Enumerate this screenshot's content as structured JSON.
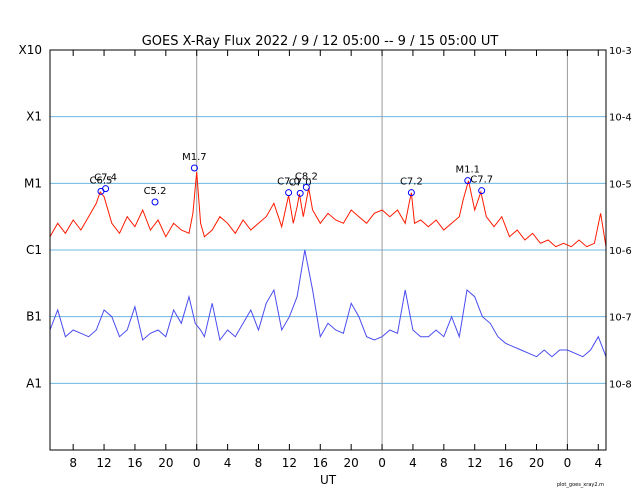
{
  "chart_data": {
    "type": "line",
    "title": "GOES X-Ray Flux   2022 /  9 / 12   05:00 --  9 / 15   05:00   UT",
    "xlabel": "UT",
    "footnote": "plot_goes_xray2.m",
    "x_range_hours": [
      0,
      72
    ],
    "x_ticks": [
      {
        "h": 3,
        "label": "8"
      },
      {
        "h": 7,
        "label": "12"
      },
      {
        "h": 11,
        "label": "16"
      },
      {
        "h": 15,
        "label": "20"
      },
      {
        "h": 19,
        "label": "0"
      },
      {
        "h": 23,
        "label": "4"
      },
      {
        "h": 27,
        "label": "8"
      },
      {
        "h": 31,
        "label": "12"
      },
      {
        "h": 35,
        "label": "16"
      },
      {
        "h": 39,
        "label": "20"
      },
      {
        "h": 43,
        "label": "0"
      },
      {
        "h": 47,
        "label": "4"
      },
      {
        "h": 51,
        "label": "8"
      },
      {
        "h": 55,
        "label": "12"
      },
      {
        "h": 59,
        "label": "16"
      },
      {
        "h": 63,
        "label": "20"
      },
      {
        "h": 67,
        "label": "0"
      },
      {
        "h": 71,
        "label": "4"
      }
    ],
    "day_boundaries_hours": [
      19,
      43,
      67
    ],
    "y_log_range": [
      -9,
      -3
    ],
    "left_labels": [
      {
        "log": -3,
        "label": "X10"
      },
      {
        "log": -4,
        "label": "X1"
      },
      {
        "log": -5,
        "label": "M1"
      },
      {
        "log": -6,
        "label": "C1"
      },
      {
        "log": -7,
        "label": "B1"
      },
      {
        "log": -8,
        "label": "A1"
      }
    ],
    "right_labels": [
      {
        "log": -3,
        "label": "10-3"
      },
      {
        "log": -4,
        "label": "10-4"
      },
      {
        "log": -5,
        "label": "10-5"
      },
      {
        "log": -6,
        "label": "10-6"
      },
      {
        "log": -7,
        "label": "10-7"
      },
      {
        "log": -8,
        "label": "10-8"
      }
    ],
    "grid_levels_log": [
      -4,
      -5,
      -6,
      -7,
      -8
    ],
    "series": [
      {
        "color": "#ff1a00",
        "points": [
          [
            0,
            -5.8
          ],
          [
            1,
            -5.6
          ],
          [
            2,
            -5.75
          ],
          [
            3,
            -5.55
          ],
          [
            4,
            -5.7
          ],
          [
            5,
            -5.5
          ],
          [
            6,
            -5.3
          ],
          [
            6.5,
            -5.13
          ],
          [
            7,
            -5.2
          ],
          [
            8,
            -5.6
          ],
          [
            9,
            -5.75
          ],
          [
            10,
            -5.5
          ],
          [
            11,
            -5.65
          ],
          [
            12,
            -5.4
          ],
          [
            13,
            -5.7
          ],
          [
            14,
            -5.55
          ],
          [
            15,
            -5.8
          ],
          [
            16,
            -5.6
          ],
          [
            17,
            -5.7
          ],
          [
            18,
            -5.75
          ],
          [
            18.5,
            -5.45
          ],
          [
            19,
            -4.83
          ],
          [
            19.5,
            -5.6
          ],
          [
            20,
            -5.8
          ],
          [
            21,
            -5.7
          ],
          [
            22,
            -5.5
          ],
          [
            23,
            -5.6
          ],
          [
            24,
            -5.75
          ],
          [
            25,
            -5.55
          ],
          [
            26,
            -5.7
          ],
          [
            27,
            -5.6
          ],
          [
            28,
            -5.5
          ],
          [
            29,
            -5.3
          ],
          [
            30,
            -5.65
          ],
          [
            30.9,
            -5.18
          ],
          [
            31.5,
            -5.6
          ],
          [
            32,
            -5.35
          ],
          [
            32.3,
            -5.16
          ],
          [
            32.8,
            -5.5
          ],
          [
            33.5,
            -5.07
          ],
          [
            34,
            -5.4
          ],
          [
            35,
            -5.6
          ],
          [
            36,
            -5.45
          ],
          [
            37,
            -5.55
          ],
          [
            38,
            -5.6
          ],
          [
            39,
            -5.4
          ],
          [
            40,
            -5.5
          ],
          [
            41,
            -5.6
          ],
          [
            42,
            -5.45
          ],
          [
            43,
            -5.4
          ],
          [
            44,
            -5.5
          ],
          [
            45,
            -5.4
          ],
          [
            46,
            -5.6
          ],
          [
            46.5,
            -5.3
          ],
          [
            46.8,
            -5.14
          ],
          [
            47.2,
            -5.6
          ],
          [
            48,
            -5.55
          ],
          [
            49,
            -5.65
          ],
          [
            50,
            -5.55
          ],
          [
            51,
            -5.7
          ],
          [
            52,
            -5.6
          ],
          [
            53,
            -5.5
          ],
          [
            53.5,
            -5.25
          ],
          [
            54.2,
            -4.96
          ],
          [
            55,
            -5.4
          ],
          [
            55.8,
            -5.13
          ],
          [
            56.5,
            -5.5
          ],
          [
            57.5,
            -5.65
          ],
          [
            58.5,
            -5.5
          ],
          [
            59.5,
            -5.8
          ],
          [
            60.5,
            -5.7
          ],
          [
            61.5,
            -5.85
          ],
          [
            62.5,
            -5.75
          ],
          [
            63.5,
            -5.9
          ],
          [
            64.5,
            -5.85
          ],
          [
            65.5,
            -5.95
          ],
          [
            66.5,
            -5.9
          ],
          [
            67.5,
            -5.95
          ],
          [
            68.5,
            -5.85
          ],
          [
            69.5,
            -5.95
          ],
          [
            70.5,
            -5.9
          ],
          [
            71.3,
            -5.45
          ],
          [
            72,
            -5.95
          ]
        ]
      },
      {
        "color": "#4a4cf0",
        "points": [
          [
            0,
            -7.2
          ],
          [
            1,
            -6.9
          ],
          [
            2,
            -7.3
          ],
          [
            3,
            -7.2
          ],
          [
            4,
            -7.25
          ],
          [
            5,
            -7.3
          ],
          [
            6,
            -7.2
          ],
          [
            7,
            -6.9
          ],
          [
            8,
            -7.0
          ],
          [
            9,
            -7.3
          ],
          [
            10,
            -7.2
          ],
          [
            11,
            -6.85
          ],
          [
            12,
            -7.35
          ],
          [
            13,
            -7.25
          ],
          [
            14,
            -7.2
          ],
          [
            15,
            -7.3
          ],
          [
            16,
            -6.9
          ],
          [
            17,
            -7.1
          ],
          [
            18,
            -6.7
          ],
          [
            18.8,
            -7.1
          ],
          [
            19.5,
            -7.2
          ],
          [
            20,
            -7.3
          ],
          [
            21,
            -6.8
          ],
          [
            22,
            -7.35
          ],
          [
            23,
            -7.2
          ],
          [
            24,
            -7.3
          ],
          [
            25,
            -7.1
          ],
          [
            26,
            -6.9
          ],
          [
            27,
            -7.2
          ],
          [
            28,
            -6.8
          ],
          [
            29,
            -6.6
          ],
          [
            30,
            -7.2
          ],
          [
            31,
            -7.0
          ],
          [
            32,
            -6.7
          ],
          [
            33,
            -6.0
          ],
          [
            34,
            -6.6
          ],
          [
            35,
            -7.3
          ],
          [
            36,
            -7.1
          ],
          [
            37,
            -7.2
          ],
          [
            38,
            -7.25
          ],
          [
            39,
            -6.8
          ],
          [
            40,
            -7.0
          ],
          [
            41,
            -7.3
          ],
          [
            42,
            -7.35
          ],
          [
            43,
            -7.3
          ],
          [
            44,
            -7.2
          ],
          [
            45,
            -7.25
          ],
          [
            46,
            -6.6
          ],
          [
            47,
            -7.2
          ],
          [
            48,
            -7.3
          ],
          [
            49,
            -7.3
          ],
          [
            50,
            -7.2
          ],
          [
            51,
            -7.3
          ],
          [
            52,
            -7.0
          ],
          [
            53,
            -7.3
          ],
          [
            54,
            -6.6
          ],
          [
            55,
            -6.7
          ],
          [
            56,
            -7.0
          ],
          [
            57,
            -7.1
          ],
          [
            58,
            -7.3
          ],
          [
            59,
            -7.4
          ],
          [
            60,
            -7.45
          ],
          [
            61,
            -7.5
          ],
          [
            62,
            -7.55
          ],
          [
            63,
            -7.6
          ],
          [
            64,
            -7.5
          ],
          [
            65,
            -7.6
          ],
          [
            66,
            -7.5
          ],
          [
            67,
            -7.5
          ],
          [
            68,
            -7.55
          ],
          [
            69,
            -7.6
          ],
          [
            70,
            -7.5
          ],
          [
            71,
            -7.3
          ],
          [
            72,
            -7.6
          ]
        ]
      }
    ],
    "flares": [
      {
        "x": 6.6,
        "log": -5.12,
        "label": "C6.5"
      },
      {
        "x": 7.2,
        "log": -5.08,
        "label": "C7.4"
      },
      {
        "x": 13.6,
        "log": -5.28,
        "label": "C5.2"
      },
      {
        "x": 18.7,
        "log": -4.77,
        "label": "M1.7"
      },
      {
        "x": 30.9,
        "log": -5.14,
        "label": "C7.0"
      },
      {
        "x": 32.4,
        "log": -5.15,
        "label": "C7.0"
      },
      {
        "x": 33.2,
        "log": -5.06,
        "label": "C8.2"
      },
      {
        "x": 46.8,
        "log": -5.14,
        "label": "C7.2"
      },
      {
        "x": 54.1,
        "log": -4.96,
        "label": "M1.1"
      },
      {
        "x": 55.9,
        "log": -5.11,
        "label": "C7.7"
      }
    ]
  }
}
